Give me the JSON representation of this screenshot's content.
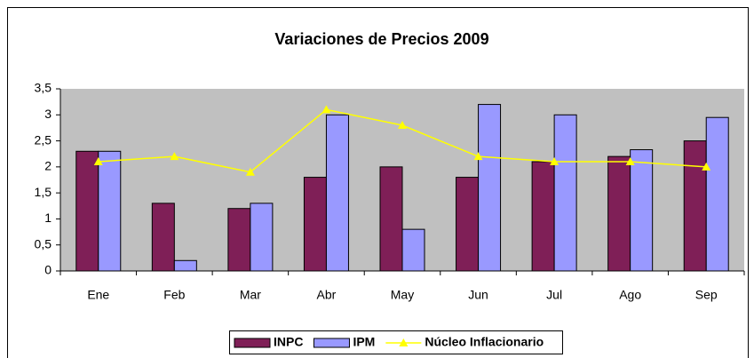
{
  "chart_data": {
    "type": "bar",
    "title": "Variaciones de Precios 2009",
    "categories": [
      "Ene",
      "Feb",
      "Mar",
      "Abr",
      "May",
      "Jun",
      "Jul",
      "Ago",
      "Sep"
    ],
    "series": [
      {
        "name": "INPC",
        "color": "#7f1f57",
        "type": "bar",
        "values": [
          2.3,
          1.3,
          1.2,
          1.8,
          2.0,
          1.8,
          2.1,
          2.2,
          2.5
        ]
      },
      {
        "name": "IPM",
        "color": "#9999ff",
        "type": "bar",
        "values": [
          2.3,
          0.2,
          1.3,
          3.0,
          0.8,
          3.2,
          3.0,
          2.33,
          2.95
        ]
      },
      {
        "name": "Núcleo Inflacionario",
        "color": "#ffff00",
        "type": "line",
        "values": [
          2.1,
          2.2,
          1.9,
          3.1,
          2.8,
          2.2,
          2.1,
          2.1,
          2.0
        ]
      }
    ],
    "ylim": [
      0,
      3.5
    ],
    "yticks": [
      0,
      {
        "value": 0.5,
        "label": "0,5"
      },
      1,
      {
        "value": 1.5,
        "label": "1,5"
      },
      2,
      {
        "value": 2.5,
        "label": "2,5"
      },
      3,
      {
        "value": 3.5,
        "label": "3,5"
      }
    ],
    "grid": false,
    "legend": "bottom"
  }
}
